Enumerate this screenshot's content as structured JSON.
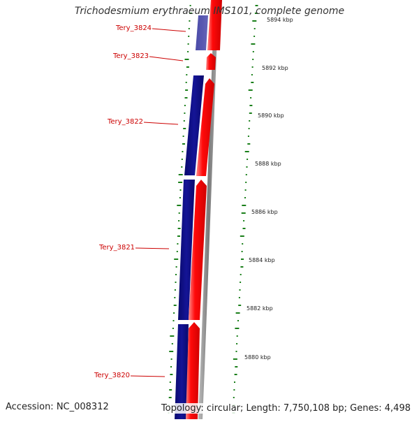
{
  "title": "Trichodesmium erythraeum IMS101, complete genome",
  "footer": {
    "accession": "Accession: NC_008312",
    "stats": "Topology: circular; Length: 7,750,108 bp; Genes: 4,498"
  },
  "genes": [
    {
      "name": "Tery_3824"
    },
    {
      "name": "Tery_3823"
    },
    {
      "name": "Tery_3822"
    },
    {
      "name": "Tery_3821"
    },
    {
      "name": "Tery_3820"
    }
  ],
  "scale": {
    "unit": "kbp",
    "ticks": [
      "5894 kbp",
      "5892 kbp",
      "5890 kbp",
      "5888 kbp",
      "5886 kbp",
      "5884 kbp",
      "5882 kbp",
      "5880 kbp"
    ]
  },
  "colors": {
    "reverse_strand": "#0a0a82",
    "reverse_strand_light": "#3b3a9e",
    "forward_strand": "#ff0a0a",
    "backbone": "#8c8c8c",
    "gene_label": "#cc0000",
    "gc_dots": "#1a7f1a"
  }
}
